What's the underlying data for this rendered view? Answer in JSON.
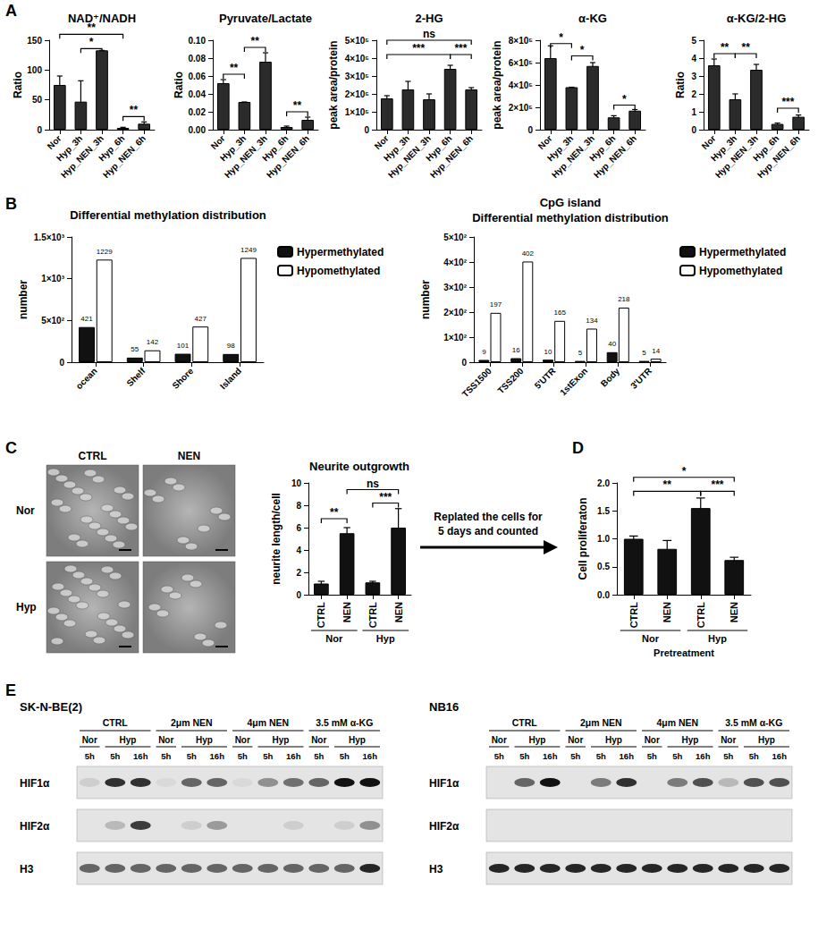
{
  "panel_labels": [
    "A",
    "B",
    "C",
    "D",
    "E"
  ],
  "chart_data": [
    {
      "type": "bar",
      "title": "NAD⁺/NADH",
      "y_label": "Ratio",
      "categories": [
        "Nor",
        "Hyp_3h",
        "Hyp_NEN_3h",
        "Hyp_6h",
        "Hyp_NEN_6h"
      ],
      "values": [
        75,
        47,
        133,
        3,
        10
      ],
      "errors": [
        15,
        35,
        0,
        1,
        3
      ],
      "color": "#2b2b2b",
      "ylim": [
        0,
        150
      ],
      "yticks": [
        0,
        50,
        100,
        150
      ],
      "grid": false,
      "annotations": [
        {
          "from": 0,
          "to": 3,
          "text": "**",
          "y": 160
        },
        {
          "from": 1,
          "to": 2,
          "text": "*",
          "y": 136
        },
        {
          "from": 3,
          "to": 4,
          "text": "**",
          "y": 22
        }
      ]
    },
    {
      "type": "bar",
      "title": "Pyruvate/Lactate",
      "y_label": "Ratio",
      "categories": [
        "Nor",
        "Hyp_3h",
        "Hyp_NEN_3h",
        "Hyp_6h",
        "Hyp_NEN_6h"
      ],
      "values": [
        0.052,
        0.031,
        0.076,
        0.003,
        0.011
      ],
      "errors": [
        0.004,
        0,
        0.01,
        0.001,
        0.003
      ],
      "color": "#2b2b2b",
      "ylim": [
        0,
        0.1
      ],
      "yticks": [
        {
          "value": 0,
          "label": "0.00"
        },
        {
          "value": 0.02,
          "label": "0.02"
        },
        {
          "value": 0.04,
          "label": "0.04"
        },
        {
          "value": 0.06,
          "label": "0.06"
        },
        {
          "value": 0.08,
          "label": "0.08"
        },
        {
          "value": 0.1,
          "label": "0.10"
        }
      ],
      "grid": false,
      "annotations": [
        {
          "from": 0,
          "to": 1,
          "text": "**",
          "y": 0.062
        },
        {
          "from": 1,
          "to": 2,
          "text": "**",
          "y": 0.092
        },
        {
          "from": 3,
          "to": 4,
          "text": "**",
          "y": 0.02
        }
      ]
    },
    {
      "type": "bar",
      "title": "2-HG",
      "y_label": "peak area/protein",
      "categories": [
        "Nor",
        "Hyp_3h",
        "Hyp_NEN_3h",
        "Hyp_6h",
        "Hyp_NEN_6h"
      ],
      "values": [
        175000,
        225000,
        170000,
        340000,
        225000
      ],
      "errors": [
        15000,
        45000,
        30000,
        20000,
        10000
      ],
      "color": "#2b2b2b",
      "ylim": [
        0,
        500000
      ],
      "yticks": [
        0,
        {
          "value": 100000,
          "label": "1×10⁵"
        },
        {
          "value": 200000,
          "label": "2×10⁵"
        },
        {
          "value": 300000,
          "label": "3×10⁵"
        },
        {
          "value": 400000,
          "label": "4×10⁵"
        },
        {
          "value": 500000,
          "label": "5×10⁵"
        }
      ],
      "grid": false,
      "annotations": [
        {
          "from": 0,
          "to": 4,
          "text": "ns",
          "y": 500000
        },
        {
          "from": 0,
          "to": 3,
          "text": "***",
          "y": 420000
        },
        {
          "from": 3,
          "to": 4,
          "text": "***",
          "y": 420000
        }
      ]
    },
    {
      "type": "bar",
      "title": "α-KG",
      "y_label": "peak area/protein",
      "categories": [
        "Nor",
        "Hyp_3h",
        "Hyp_NEN_3h",
        "Hyp_6h",
        "Hyp_NEN_6h"
      ],
      "values": [
        640000,
        380000,
        570000,
        110000,
        170000
      ],
      "errors": [
        110000,
        0,
        30000,
        15000,
        10000
      ],
      "color": "#2b2b2b",
      "ylim": [
        0,
        800000
      ],
      "yticks": [
        0,
        {
          "value": 200000,
          "label": "2×10⁵"
        },
        {
          "value": 400000,
          "label": "4×10⁵"
        },
        {
          "value": 600000,
          "label": "6×10⁵"
        },
        {
          "value": 800000,
          "label": "8×10⁵"
        }
      ],
      "grid": false,
      "annotations": [
        {
          "from": 0,
          "to": 1,
          "text": "*",
          "y": 770000
        },
        {
          "from": 1,
          "to": 2,
          "text": "*",
          "y": 660000
        },
        {
          "from": 3,
          "to": 4,
          "text": "*",
          "y": 220000
        }
      ]
    },
    {
      "type": "bar",
      "title": "α-KG/2-HG",
      "y_label": "Ratio",
      "categories": [
        "Nor",
        "Hyp_3h",
        "Hyp_NEN_3h",
        "Hyp_6h",
        "Hyp_NEN_6h"
      ],
      "values": [
        3.6,
        1.7,
        3.35,
        0.32,
        0.72
      ],
      "errors": [
        0.35,
        0.3,
        0.3,
        0.05,
        0.1
      ],
      "color": "#2b2b2b",
      "ylim": [
        0,
        5
      ],
      "yticks": [
        0,
        1,
        2,
        3,
        4,
        5
      ],
      "grid": false,
      "annotations": [
        {
          "from": 0,
          "to": 1,
          "text": "**",
          "y": 4.25
        },
        {
          "from": 1,
          "to": 2,
          "text": "**",
          "y": 4.25
        },
        {
          "from": 3,
          "to": 4,
          "text": "***",
          "y": 1.2
        }
      ]
    },
    {
      "type": "bar",
      "title": "Differential methylation distribution",
      "y_label": "number",
      "categories": [
        "ocean",
        "Shelf",
        "Shore",
        "Island"
      ],
      "series": [
        {
          "name": "Hypermethylated",
          "color": "#111111",
          "values": [
            421,
            55,
            101,
            98
          ]
        },
        {
          "name": "Hypomethylated",
          "color": "#ffffff",
          "values": [
            1229,
            142,
            427,
            1249
          ]
        }
      ],
      "data_labels": true,
      "legend": "right",
      "ylim": [
        0,
        1500
      ],
      "yticks": [
        0,
        {
          "value": 500,
          "label": "5×10²"
        },
        {
          "value": 1000,
          "label": "1×10³"
        },
        {
          "value": 1500,
          "label": "1.5×10³"
        }
      ],
      "grid": false
    },
    {
      "type": "bar",
      "title": "CpG island",
      "subtitle": "Differential methylation distribution",
      "y_label": "number",
      "categories": [
        "TSS1500",
        "TSS200",
        "5'UTR",
        "1stExon",
        "Body",
        "3'UTR"
      ],
      "series": [
        {
          "name": "Hypermethylated",
          "color": "#111111",
          "values": [
            9,
            16,
            10,
            5,
            40,
            5
          ]
        },
        {
          "name": "Hypomethylated",
          "color": "#ffffff",
          "values": [
            197,
            402,
            165,
            134,
            218,
            14
          ]
        }
      ],
      "data_labels": true,
      "legend": "right",
      "ylim": [
        0,
        500
      ],
      "yticks": [
        0,
        {
          "value": 100,
          "label": "1×10²"
        },
        {
          "value": 200,
          "label": "2×10²"
        },
        {
          "value": 300,
          "label": "3×10²"
        },
        {
          "value": 400,
          "label": "4×10²"
        },
        {
          "value": 500,
          "label": "5×10²"
        }
      ],
      "grid": false
    },
    {
      "type": "bar",
      "title": "Neurite outgrowth",
      "y_label": "neurite length/cell",
      "categories": [
        "CTRL",
        "NEN",
        "CTRL",
        "NEN"
      ],
      "groups": [
        "Nor",
        "Nor",
        "Hyp",
        "Hyp"
      ],
      "values": [
        1.0,
        5.5,
        1.1,
        6.0
      ],
      "errors": [
        0.2,
        0.5,
        0.1,
        1.7
      ],
      "color": "#111111",
      "ylim": [
        0,
        10
      ],
      "yticks": [
        0,
        2,
        4,
        6,
        8,
        10
      ],
      "grid": false,
      "annotations": [
        {
          "from": 0,
          "to": 1,
          "text": "**",
          "y": 6.8
        },
        {
          "from": 2,
          "to": 3,
          "text": "***",
          "y": 8.2
        },
        {
          "from": 1,
          "to": 3,
          "text": "ns",
          "y": 9.4
        }
      ]
    },
    {
      "type": "bar",
      "y_label": "Cell proliferaton",
      "categories": [
        "CTRL",
        "NEN",
        "CTRL",
        "NEN"
      ],
      "groups": [
        "Nor",
        "Nor",
        "Hyp",
        "Hyp"
      ],
      "group_title": "Pretreatment",
      "values": [
        1.0,
        0.82,
        1.55,
        0.62
      ],
      "errors": [
        0.05,
        0.15,
        0.18,
        0.05
      ],
      "color": "#111111",
      "ylim": [
        0,
        2
      ],
      "yticks": [
        {
          "value": 0,
          "label": "0.0"
        },
        {
          "value": 0.5,
          "label": "0.5"
        },
        {
          "value": 1,
          "label": "1.0"
        },
        {
          "value": 1.5,
          "label": "1.5"
        },
        {
          "value": 2,
          "label": "2.0"
        }
      ],
      "grid": false,
      "annotations": [
        {
          "from": 0,
          "to": 2,
          "text": "**",
          "y": 1.85
        },
        {
          "from": 2,
          "to": 3,
          "text": "***",
          "y": 1.85
        },
        {
          "from": 0,
          "to": 3,
          "text": "*",
          "y": 2.1
        }
      ]
    }
  ],
  "micrographs": {
    "columns": [
      "CTRL",
      "NEN"
    ],
    "rows": [
      "Nor",
      "Hyp"
    ]
  },
  "arrow_text": [
    "Replated the cells for",
    "5 days and counted"
  ],
  "blots": [
    {
      "title": "SK-N-BE(2)",
      "groups": [
        {
          "label": "CTRL",
          "lanes": [
            [
              "Nor",
              "5h"
            ],
            [
              "Hyp",
              "5h"
            ],
            [
              "Hyp",
              "16h"
            ]
          ]
        },
        {
          "label": "2μm NEN",
          "lanes": [
            [
              "Nor",
              "5h"
            ],
            [
              "Hyp",
              "5h"
            ],
            [
              "Hyp",
              "16h"
            ]
          ]
        },
        {
          "label": "4μm NEN",
          "lanes": [
            [
              "Nor",
              "5h"
            ],
            [
              "Hyp",
              "5h"
            ],
            [
              "Hyp",
              "16h"
            ]
          ]
        },
        {
          "label": "3.5 mM α-KG",
          "lanes": [
            [
              "Nor",
              "5h"
            ],
            [
              "Hyp",
              "5h"
            ],
            [
              "Hyp",
              "16h"
            ]
          ]
        }
      ],
      "rows": [
        {
          "label": "HIF1α",
          "intensity": [
            0.1,
            0.85,
            0.85,
            0.05,
            0.6,
            0.6,
            0.05,
            0.4,
            0.55,
            0.6,
            1.0,
            1.0
          ]
        },
        {
          "label": "HIF2α",
          "intensity": [
            0,
            0.2,
            0.8,
            0,
            0.1,
            0.35,
            0,
            0,
            0.1,
            0,
            0.1,
            0.4
          ]
        },
        {
          "label": "H3",
          "intensity": [
            0.6,
            0.6,
            0.6,
            0.6,
            0.6,
            0.6,
            0.6,
            0.6,
            0.6,
            0.6,
            0.6,
            0.9
          ]
        }
      ]
    },
    {
      "title": "NB16",
      "groups": [
        {
          "label": "CTRL",
          "lanes": [
            [
              "Nor",
              "5h"
            ],
            [
              "Hyp",
              "5h"
            ],
            [
              "Hyp",
              "16h"
            ]
          ]
        },
        {
          "label": "2μm NEN",
          "lanes": [
            [
              "Nor",
              "5h"
            ],
            [
              "Hyp",
              "5h"
            ],
            [
              "Hyp",
              "16h"
            ]
          ]
        },
        {
          "label": "4μm NEN",
          "lanes": [
            [
              "Nor",
              "5h"
            ],
            [
              "Hyp",
              "5h"
            ],
            [
              "Hyp",
              "16h"
            ]
          ]
        },
        {
          "label": "3.5 mM α-KG",
          "lanes": [
            [
              "Nor",
              "5h"
            ],
            [
              "Hyp",
              "5h"
            ],
            [
              "Hyp",
              "16h"
            ]
          ]
        }
      ],
      "rows": [
        {
          "label": "HIF1α",
          "intensity": [
            0,
            0.6,
            1.0,
            0,
            0.5,
            0.85,
            0,
            0.5,
            0.7,
            0.2,
            0.7,
            0.7
          ]
        },
        {
          "label": "HIF2α",
          "intensity": [
            0,
            0,
            0,
            0,
            0,
            0,
            0,
            0,
            0,
            0,
            0,
            0
          ]
        },
        {
          "label": "H3",
          "intensity": [
            0.9,
            0.9,
            0.9,
            0.9,
            0.9,
            0.9,
            0.9,
            0.9,
            0.9,
            0.9,
            0.9,
            0.9
          ]
        }
      ]
    }
  ]
}
